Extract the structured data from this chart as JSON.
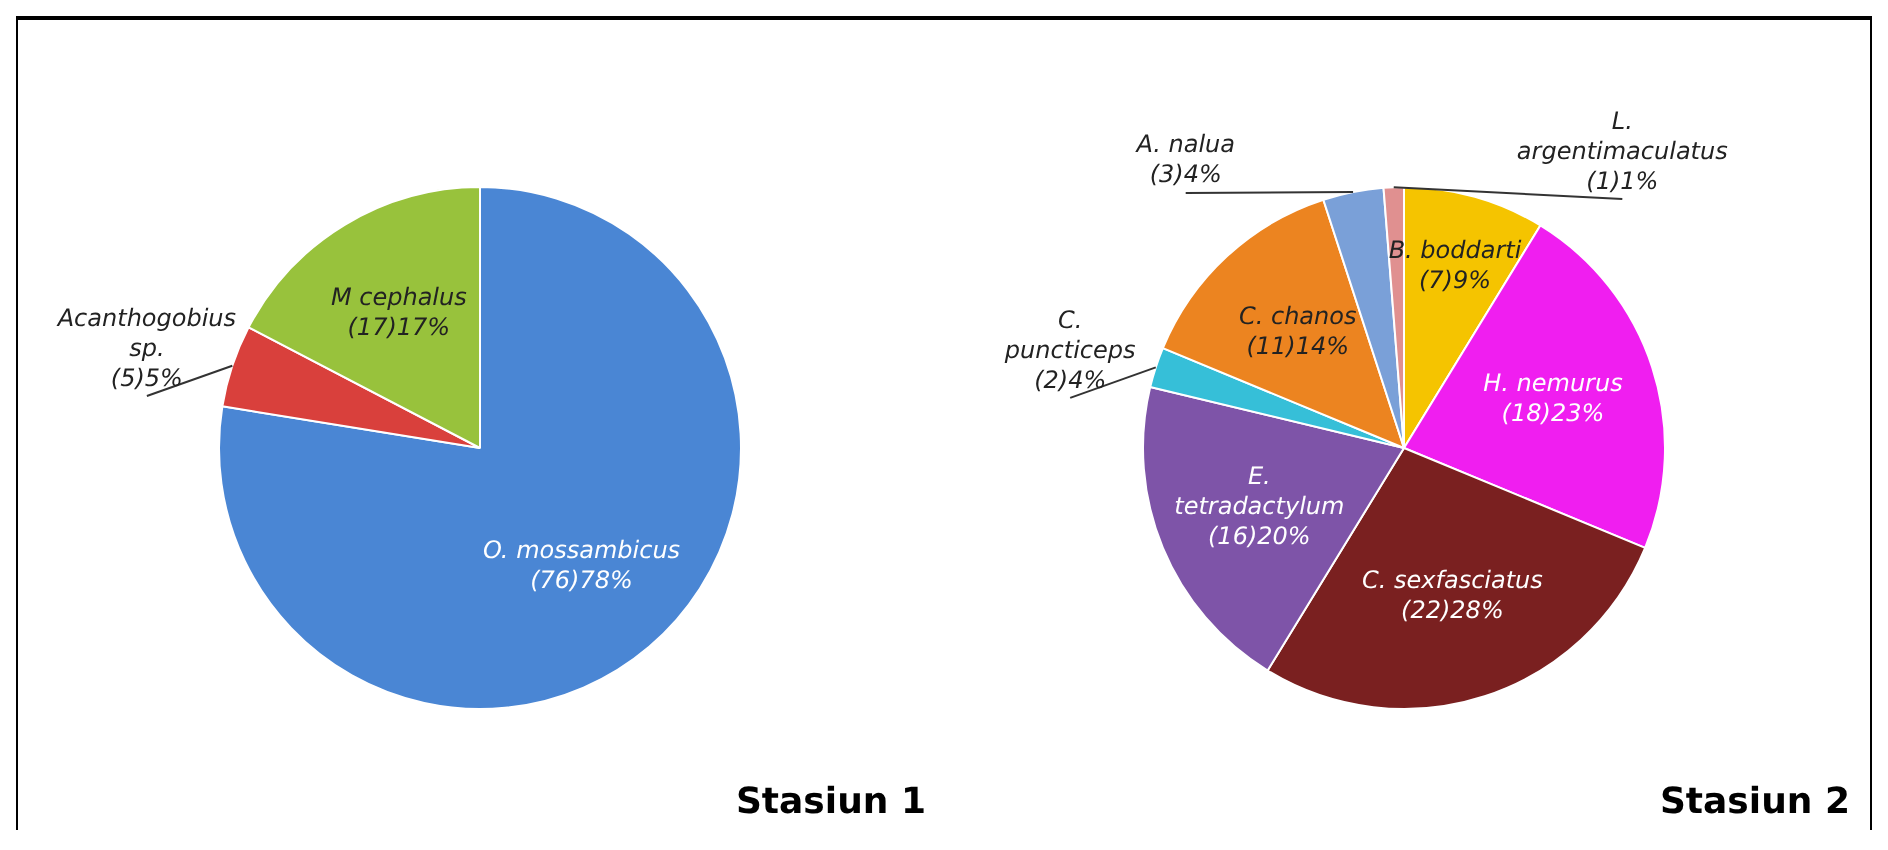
{
  "chart_data": [
    {
      "type": "pie",
      "title": "Stasiun 1",
      "categories": [
        "O. mossambicus",
        "Acanthogobius sp.",
        "M cephalus"
      ],
      "values": [
        76,
        5,
        17
      ],
      "value_labels": [
        "(76)78%",
        "(5)5%",
        "(17)17%"
      ],
      "colors": [
        "#4a86d4",
        "#d9403c",
        "#98c23c"
      ],
      "legend": false
    },
    {
      "type": "pie",
      "title": "Stasiun 2",
      "categories": [
        "B. boddarti",
        "H. nemurus",
        "C. sexfasciatus",
        "E. tetradactylum",
        "C. puncticeps",
        "C. chanos",
        "A. nalua",
        "L. argentimaculatus"
      ],
      "values": [
        7,
        18,
        22,
        16,
        2,
        11,
        3,
        1
      ],
      "value_labels": [
        "(7)9%",
        "(18)23%",
        "(22)28%",
        "(16)20%",
        "(2)4%",
        "(11)14%",
        "(3)4%",
        "(1)1%"
      ],
      "colors": [
        "#f5c400",
        "#f01ef0",
        "#7a2020",
        "#7e54a8",
        "#36bfd8",
        "#ec8420",
        "#7aa0d8",
        "#e09090"
      ],
      "legend": false
    }
  ]
}
